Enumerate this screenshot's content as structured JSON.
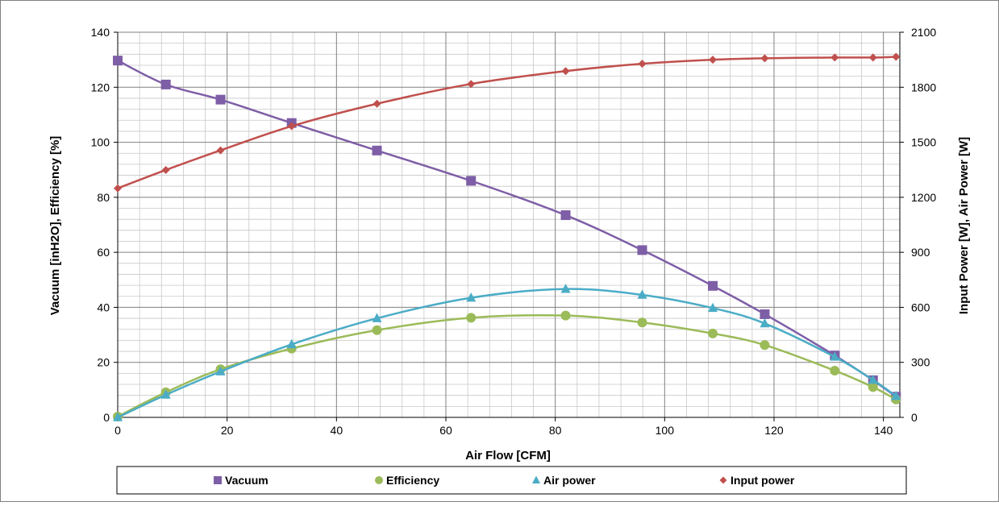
{
  "chart_data": {
    "type": "line",
    "xlabel": "Air Flow [CFM]",
    "ylabel_left": "Vacuum [inH2O], Efficiency [%]",
    "ylabel_right": "Input Power [W], Air Power [W]",
    "xlim": [
      0,
      143
    ],
    "ylim_left": [
      0,
      140
    ],
    "ylim_right": [
      0,
      2100
    ],
    "x_ticks": [
      0,
      20,
      40,
      60,
      80,
      100,
      120,
      140
    ],
    "y_left_ticks": [
      0,
      20,
      40,
      60,
      80,
      100,
      120,
      140
    ],
    "y_right_ticks": [
      0,
      300,
      600,
      900,
      1200,
      1500,
      1800,
      2100
    ],
    "grid": true,
    "legend_position": "bottom",
    "series": [
      {
        "name": "Vacuum",
        "axis": "left",
        "color": "#7e5ea6",
        "marker": "square",
        "points": [
          [
            0,
            129.7
          ],
          [
            8.8,
            121
          ],
          [
            18.8,
            115.5
          ],
          [
            31.8,
            107
          ],
          [
            47.4,
            97
          ],
          [
            64.6,
            86
          ],
          [
            81.9,
            73.5
          ],
          [
            95.9,
            60.8
          ],
          [
            108.8,
            47.8
          ],
          [
            118.3,
            37.5
          ],
          [
            131.1,
            22.5
          ],
          [
            138.1,
            13.5
          ],
          [
            142.3,
            7.5
          ]
        ]
      },
      {
        "name": "Efficiency",
        "axis": "left",
        "color": "#9bbb59",
        "marker": "circle",
        "points": [
          [
            0,
            0.3
          ],
          [
            8.8,
            9.1
          ],
          [
            18.8,
            17.5
          ],
          [
            31.8,
            25
          ],
          [
            47.4,
            31.7
          ],
          [
            64.6,
            36.2
          ],
          [
            81.9,
            37
          ],
          [
            95.9,
            34.5
          ],
          [
            108.8,
            30.5
          ],
          [
            118.3,
            26.3
          ],
          [
            131.1,
            17
          ],
          [
            138.1,
            11
          ],
          [
            142.3,
            6.5
          ]
        ]
      },
      {
        "name": "Air power",
        "axis": "right",
        "color": "#4bacc6",
        "marker": "triangle",
        "points": [
          [
            0,
            0
          ],
          [
            8.8,
            123
          ],
          [
            18.8,
            250
          ],
          [
            31.8,
            398
          ],
          [
            47.4,
            540
          ],
          [
            64.6,
            652
          ],
          [
            81.9,
            700
          ],
          [
            95.9,
            668
          ],
          [
            108.8,
            596
          ],
          [
            118.3,
            512
          ],
          [
            131.1,
            330
          ],
          [
            138.1,
            204
          ],
          [
            142.3,
            116
          ]
        ]
      },
      {
        "name": "Input power",
        "axis": "right",
        "color": "#c0504d",
        "marker": "diamond",
        "points": [
          [
            0,
            1249
          ],
          [
            8.8,
            1349
          ],
          [
            18.8,
            1456
          ],
          [
            31.8,
            1588
          ],
          [
            47.4,
            1710
          ],
          [
            64.6,
            1818
          ],
          [
            81.9,
            1888
          ],
          [
            95.9,
            1928
          ],
          [
            108.8,
            1950
          ],
          [
            118.3,
            1958
          ],
          [
            131.1,
            1962
          ],
          [
            138.1,
            1962
          ],
          [
            142.3,
            1966
          ]
        ]
      }
    ]
  }
}
